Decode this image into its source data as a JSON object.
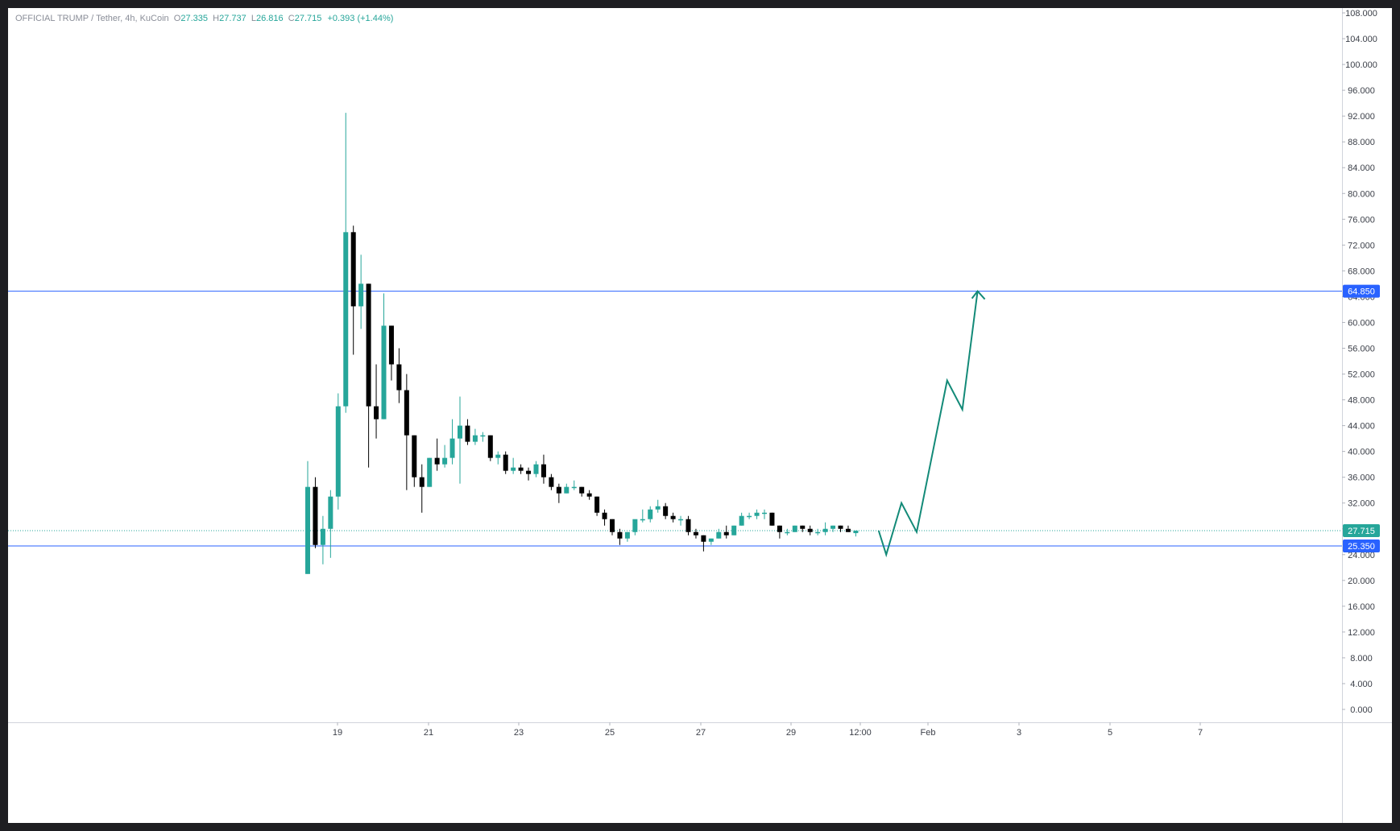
{
  "legend": {
    "symbol": "OFFICIAL TRUMP",
    "quote": "Tether",
    "interval": "4h",
    "exchange": "KuCoin",
    "open_label": "O",
    "open": "27.335",
    "high_label": "H",
    "high": "27.737",
    "low_label": "L",
    "low": "26.816",
    "close_label": "C",
    "close": "27.715",
    "change": "+0.393",
    "change_pct": "(+1.44%)"
  },
  "colors": {
    "up": "#26a69a",
    "down": "#000000",
    "level_line": "#2962ff",
    "projection": "#138a78",
    "price_badge": "#26a69a",
    "level_badge": "#2962ff"
  },
  "chart_data": {
    "type": "candlestick",
    "title": "",
    "y_axis": {
      "ticks": [
        "108.000",
        "104.000",
        "100.000",
        "96.000",
        "92.000",
        "88.000",
        "84.000",
        "80.000",
        "76.000",
        "72.000",
        "68.000",
        "64.000",
        "60.000",
        "56.000",
        "52.000",
        "48.000",
        "44.000",
        "40.000",
        "36.000",
        "32.000",
        "28.000",
        "24.000",
        "20.000",
        "16.000",
        "12.000",
        "8.000",
        "4.000",
        "0.000"
      ],
      "range": [
        0,
        108
      ]
    },
    "x_axis": {
      "ticks": [
        "19",
        "21",
        "23",
        "25",
        "27",
        "29",
        "12:00",
        "Feb",
        "3",
        "5",
        "7"
      ],
      "range": [
        "Jan 17 20:00",
        "Feb 7 12:00"
      ]
    },
    "candles": [
      [
        21.0,
        38.5,
        21.0,
        34.5
      ],
      [
        34.5,
        36.0,
        25.0,
        25.5
      ],
      [
        25.5,
        30.0,
        22.5,
        28.0
      ],
      [
        28.0,
        34.0,
        23.5,
        33.0
      ],
      [
        33.0,
        49.0,
        31.0,
        47.0
      ],
      [
        47.0,
        92.5,
        46.0,
        74.0
      ],
      [
        74.0,
        75.0,
        55.0,
        62.5
      ],
      [
        62.5,
        70.5,
        59.0,
        66.0
      ],
      [
        66.0,
        66.0,
        37.5,
        47.0
      ],
      [
        47.0,
        53.5,
        42.0,
        45.0
      ],
      [
        45.0,
        64.5,
        45.0,
        59.5
      ],
      [
        59.5,
        59.5,
        51.0,
        53.5
      ],
      [
        53.5,
        56.0,
        47.5,
        49.5
      ],
      [
        49.5,
        52.0,
        34.0,
        42.5
      ],
      [
        42.5,
        42.5,
        34.5,
        36.0
      ],
      [
        36.0,
        38.0,
        30.5,
        34.5
      ],
      [
        34.5,
        39.0,
        34.5,
        39.0
      ],
      [
        39.0,
        42.0,
        37.0,
        38.0
      ],
      [
        38.0,
        41.0,
        37.5,
        39.0
      ],
      [
        39.0,
        45.0,
        38.0,
        42.0
      ],
      [
        42.0,
        48.5,
        35.0,
        44.0
      ],
      [
        44.0,
        45.0,
        41.0,
        41.5
      ],
      [
        41.5,
        43.5,
        41.0,
        42.5
      ],
      [
        42.5,
        43.0,
        41.5,
        42.5
      ],
      [
        42.5,
        42.5,
        38.5,
        39.0
      ],
      [
        39.0,
        40.0,
        38.0,
        39.5
      ],
      [
        39.5,
        40.0,
        36.5,
        37.0
      ],
      [
        37.0,
        39.0,
        36.5,
        37.5
      ],
      [
        37.5,
        38.0,
        36.5,
        37.0
      ],
      [
        37.0,
        37.5,
        35.5,
        36.5
      ],
      [
        36.5,
        38.5,
        36.0,
        38.0
      ],
      [
        38.0,
        39.5,
        35.0,
        36.0
      ],
      [
        36.0,
        36.5,
        34.0,
        34.5
      ],
      [
        34.5,
        35.0,
        32.0,
        33.5
      ],
      [
        33.5,
        35.0,
        33.5,
        34.5
      ],
      [
        34.5,
        35.5,
        34.0,
        34.5
      ],
      [
        34.5,
        34.5,
        33.0,
        33.5
      ],
      [
        33.5,
        34.0,
        32.5,
        33.0
      ],
      [
        33.0,
        33.0,
        30.0,
        30.5
      ],
      [
        30.5,
        31.0,
        28.5,
        29.5
      ],
      [
        29.5,
        29.5,
        27.0,
        27.5
      ],
      [
        27.5,
        28.0,
        25.5,
        26.5
      ],
      [
        26.5,
        27.5,
        26.0,
        27.5
      ],
      [
        27.5,
        29.0,
        27.0,
        29.5
      ],
      [
        29.5,
        31.0,
        29.0,
        29.5
      ],
      [
        29.5,
        31.5,
        29.0,
        31.0
      ],
      [
        31.0,
        32.5,
        30.5,
        31.5
      ],
      [
        31.5,
        32.0,
        29.5,
        30.0
      ],
      [
        30.0,
        30.5,
        29.0,
        29.5
      ],
      [
        29.5,
        30.0,
        28.5,
        29.5
      ],
      [
        29.5,
        30.0,
        27.0,
        27.5
      ],
      [
        27.5,
        28.0,
        26.5,
        27.0
      ],
      [
        27.0,
        27.0,
        24.5,
        26.0
      ],
      [
        26.0,
        26.5,
        25.5,
        26.5
      ],
      [
        26.5,
        28.0,
        26.5,
        27.5
      ],
      [
        27.5,
        28.5,
        26.5,
        27.0
      ],
      [
        27.0,
        28.5,
        27.0,
        28.5
      ],
      [
        28.5,
        30.5,
        28.5,
        30.0
      ],
      [
        30.0,
        30.5,
        29.5,
        30.0
      ],
      [
        30.0,
        31.0,
        29.5,
        30.5
      ],
      [
        30.5,
        31.0,
        29.5,
        30.5
      ],
      [
        30.5,
        30.5,
        28.5,
        28.5
      ],
      [
        28.5,
        28.5,
        26.5,
        27.5
      ],
      [
        27.5,
        28.0,
        27.0,
        27.5
      ],
      [
        27.5,
        28.5,
        27.5,
        28.5
      ],
      [
        28.5,
        28.5,
        27.5,
        28.0
      ],
      [
        28.0,
        28.5,
        27.0,
        27.5
      ],
      [
        27.5,
        28.0,
        27.0,
        27.5
      ],
      [
        27.5,
        29.0,
        27.0,
        28.0
      ],
      [
        28.0,
        28.5,
        27.5,
        28.5
      ],
      [
        28.5,
        28.5,
        27.5,
        28.0
      ],
      [
        28.0,
        28.5,
        27.5,
        27.5
      ],
      [
        27.335,
        27.737,
        26.816,
        27.715
      ]
    ],
    "horizontal_levels": [
      {
        "value": 64.85,
        "label": "64.850"
      },
      {
        "value": 25.35,
        "label": "25.350"
      }
    ],
    "last_price": {
      "value": 27.715,
      "label": "27.715"
    },
    "projection_path": [
      [
        75,
        27.715
      ],
      [
        76,
        24.0
      ],
      [
        78,
        32.0
      ],
      [
        80,
        27.5
      ],
      [
        84,
        51.0
      ],
      [
        86,
        46.5
      ],
      [
        88,
        64.85
      ]
    ]
  }
}
